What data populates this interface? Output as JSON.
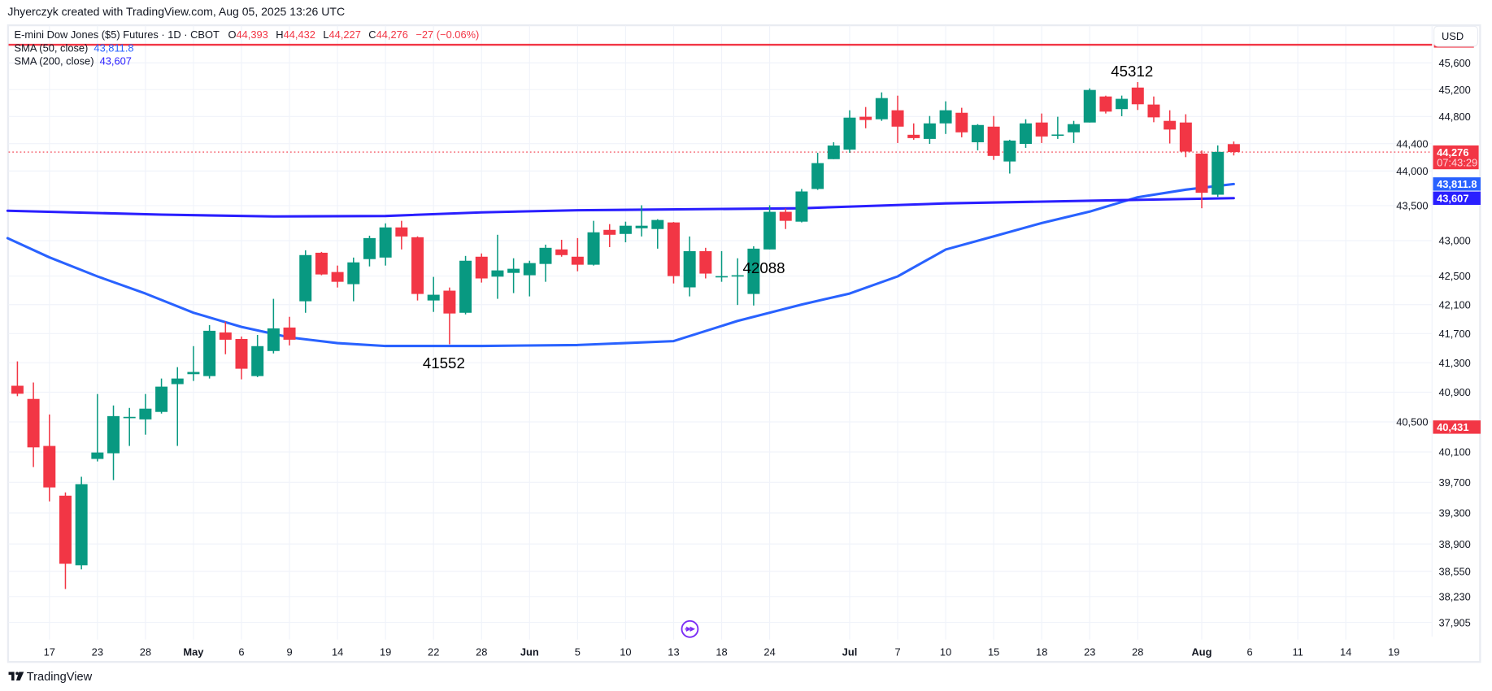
{
  "header": {
    "attribution": "Jhyerczyk created with TradingView.com, Aug 05, 2025 13:26 UTC"
  },
  "legend": {
    "symbol": "E-mini Dow Jones ($5) Futures · 1D · CBOT",
    "o_label": "O",
    "o_value": "44,393",
    "h_label": "H",
    "h_value": "44,432",
    "l_label": "L",
    "l_value": "44,227",
    "c_label": "C",
    "c_value": "44,276",
    "change": "−27 (−0.06%)",
    "sma50_label": "SMA (50, close)",
    "sma50_value": "43,811.8",
    "sma200_label": "SMA (200, close)",
    "sma200_value": "43,607"
  },
  "price_axis": {
    "currency": "USD",
    "ticks": [
      "45,600",
      "45,200",
      "44,800",
      "44,400",
      "44,000",
      "43,500",
      "43,000",
      "42,500",
      "42,100",
      "41,700",
      "41,300",
      "40,900",
      "40,500",
      "40,100",
      "39,700",
      "39,300",
      "38,900",
      "38,550",
      "38,230",
      "37,905"
    ],
    "badges": [
      {
        "text": "44,276",
        "sub": "07:43:29",
        "price": 44276,
        "color": "#f23645"
      },
      {
        "text": "43,811.8",
        "price": 43811.8,
        "color": "#2962ff"
      },
      {
        "text": "43,607",
        "price": 43607,
        "color": "#2a1fff"
      },
      {
        "text": "40,431",
        "price": 40431,
        "color": "#f23645"
      }
    ]
  },
  "time_axis": {
    "ticks": [
      {
        "label": "17",
        "date": "2025-04-17"
      },
      {
        "label": "23",
        "date": "2025-04-23"
      },
      {
        "label": "28",
        "date": "2025-04-28"
      },
      {
        "label": "May",
        "date": "2025-05-01",
        "month": true
      },
      {
        "label": "6",
        "date": "2025-05-06"
      },
      {
        "label": "9",
        "date": "2025-05-09"
      },
      {
        "label": "14",
        "date": "2025-05-14"
      },
      {
        "label": "19",
        "date": "2025-05-19"
      },
      {
        "label": "22",
        "date": "2025-05-22"
      },
      {
        "label": "28",
        "date": "2025-05-28"
      },
      {
        "label": "Jun",
        "date": "2025-06-02",
        "month": true
      },
      {
        "label": "5",
        "date": "2025-06-05"
      },
      {
        "label": "10",
        "date": "2025-06-10"
      },
      {
        "label": "13",
        "date": "2025-06-13"
      },
      {
        "label": "18",
        "date": "2025-06-18"
      },
      {
        "label": "24",
        "date": "2025-06-24"
      },
      {
        "label": "Jul",
        "date": "2025-07-01",
        "month": true
      },
      {
        "label": "7",
        "date": "2025-07-07"
      },
      {
        "label": "10",
        "date": "2025-07-10"
      },
      {
        "label": "15",
        "date": "2025-07-15"
      },
      {
        "label": "18",
        "date": "2025-07-18"
      },
      {
        "label": "23",
        "date": "2025-07-23"
      },
      {
        "label": "28",
        "date": "2025-07-28"
      },
      {
        "label": "Aug",
        "date": "2025-08-01",
        "month": true
      },
      {
        "label": "6",
        "date": "2025-08-06"
      },
      {
        "label": "11",
        "date": "2025-08-11"
      },
      {
        "label": "14",
        "date": "2025-08-14"
      },
      {
        "label": "19",
        "date": "2025-08-19"
      }
    ]
  },
  "colors": {
    "up": "#089981",
    "down": "#f23645",
    "sma50": "#2962ff",
    "sma200": "#2a1fff",
    "hline": "#f23645",
    "replay": "#7b2cf5"
  },
  "horizontal_line": {
    "price": 45874
  },
  "annotations": [
    {
      "text": "45312",
      "date": "2025-07-28",
      "position": "above"
    },
    {
      "text": "41552",
      "date": "2025-05-23",
      "position": "below"
    },
    {
      "text": "42088",
      "date": "2025-06-24",
      "position": "below"
    }
  ],
  "chart_data": {
    "type": "candlestick",
    "scale": "log",
    "columns": [
      "date",
      "open",
      "high",
      "low",
      "close"
    ],
    "candles": [
      [
        "2025-04-15",
        40987,
        41318,
        40846,
        40879
      ],
      [
        "2025-04-16",
        40809,
        41031,
        39901,
        40161
      ],
      [
        "2025-04-17",
        40180,
        40600,
        39451,
        39633
      ],
      [
        "2025-04-21",
        39525,
        39568,
        38325,
        38646
      ],
      [
        "2025-04-22",
        38627,
        39773,
        38575,
        39676
      ],
      [
        "2025-04-23",
        40008,
        40875,
        39975,
        40093
      ],
      [
        "2025-04-24",
        40083,
        40721,
        39729,
        40578
      ],
      [
        "2025-04-25",
        40555,
        40688,
        40180,
        40568
      ],
      [
        "2025-04-28",
        40534,
        40875,
        40330,
        40678
      ],
      [
        "2025-04-29",
        40634,
        41085,
        40612,
        40975
      ],
      [
        "2025-04-30",
        41009,
        41240,
        40180,
        41085
      ],
      [
        "2025-05-01",
        41144,
        41527,
        41052,
        41174
      ],
      [
        "2025-05-02",
        41118,
        41817,
        41085,
        41738
      ],
      [
        "2025-05-05",
        41715,
        41863,
        41416,
        41615
      ],
      [
        "2025-05-06",
        41625,
        41659,
        41074,
        41218
      ],
      [
        "2025-05-07",
        41118,
        41681,
        41104,
        41527
      ],
      [
        "2025-05-08",
        41460,
        42181,
        41427,
        41771
      ],
      [
        "2025-05-09",
        41783,
        41931,
        41537,
        41615
      ],
      [
        "2025-05-12",
        42147,
        42863,
        41987,
        42795
      ],
      [
        "2025-05-13",
        42828,
        42840,
        42511,
        42522
      ],
      [
        "2025-05-14",
        42556,
        42647,
        42339,
        42419
      ],
      [
        "2025-05-15",
        42386,
        42760,
        42147,
        42692
      ],
      [
        "2025-05-16",
        42738,
        43070,
        42635,
        43036
      ],
      [
        "2025-05-19",
        42760,
        43246,
        42647,
        43188
      ],
      [
        "2025-05-20",
        43188,
        43282,
        42875,
        43059
      ],
      [
        "2025-05-21",
        43048,
        43060,
        42158,
        42249
      ],
      [
        "2025-05-22",
        42158,
        42488,
        41999,
        42238
      ],
      [
        "2025-05-23",
        42295,
        42339,
        41552,
        41977
      ],
      [
        "2025-05-27",
        41987,
        42783,
        41965,
        42715
      ],
      [
        "2025-05-28",
        42772,
        42818,
        42408,
        42466
      ],
      [
        "2025-05-29",
        42491,
        43083,
        42181,
        42579
      ],
      [
        "2025-05-30",
        42544,
        42750,
        42261,
        42602
      ],
      [
        "2025-06-02",
        42511,
        42715,
        42215,
        42682
      ],
      [
        "2025-06-03",
        42670,
        42943,
        42419,
        42898
      ],
      [
        "2025-06-04",
        42875,
        43012,
        42772,
        42795
      ],
      [
        "2025-06-05",
        42772,
        43036,
        42567,
        42659
      ],
      [
        "2025-06-06",
        42659,
        43282,
        42647,
        43118
      ],
      [
        "2025-06-09",
        43153,
        43235,
        42908,
        43083
      ],
      [
        "2025-06-10",
        43095,
        43270,
        42976,
        43212
      ],
      [
        "2025-06-11",
        43176,
        43505,
        43059,
        43212
      ],
      [
        "2025-06-12",
        43165,
        43305,
        42886,
        43294
      ],
      [
        "2025-06-13",
        43259,
        43265,
        42396,
        42499
      ],
      [
        "2025-06-16",
        42341,
        43059,
        42215,
        42851
      ],
      [
        "2025-06-17",
        42851,
        42898,
        42466,
        42534
      ],
      [
        "2025-06-18",
        42495,
        42851,
        42419,
        42499
      ],
      [
        "2025-06-20",
        42504,
        42750,
        42095,
        42511
      ],
      [
        "2025-06-23",
        42249,
        42920,
        42088,
        42886
      ],
      [
        "2025-06-24",
        42875,
        43505,
        42875,
        43411
      ],
      [
        "2025-06-25",
        43411,
        43458,
        43165,
        43282
      ],
      [
        "2025-06-26",
        43270,
        43740,
        43259,
        43704
      ],
      [
        "2025-06-27",
        43740,
        44266,
        43727,
        44115
      ],
      [
        "2025-06-30",
        44173,
        44420,
        44173,
        44372
      ],
      [
        "2025-07-01",
        44313,
        44892,
        44266,
        44783
      ],
      [
        "2025-07-02",
        44796,
        44940,
        44626,
        44748
      ],
      [
        "2025-07-03",
        44759,
        45158,
        44735,
        45073
      ],
      [
        "2025-07-07",
        44892,
        45109,
        44409,
        44650
      ],
      [
        "2025-07-08",
        44530,
        44698,
        44457,
        44481
      ],
      [
        "2025-07-09",
        44469,
        44807,
        44396,
        44698
      ],
      [
        "2025-07-10",
        44698,
        45025,
        44542,
        44892
      ],
      [
        "2025-07-11",
        44855,
        44929,
        44493,
        44566
      ],
      [
        "2025-07-14",
        44420,
        44687,
        44302,
        44674
      ],
      [
        "2025-07-15",
        44650,
        44807,
        44162,
        44220
      ],
      [
        "2025-07-16",
        44139,
        44457,
        43963,
        44445
      ],
      [
        "2025-07-17",
        44396,
        44759,
        44338,
        44698
      ],
      [
        "2025-07-18",
        44711,
        44844,
        44409,
        44505
      ],
      [
        "2025-07-21",
        44525,
        44796,
        44469,
        44534
      ],
      [
        "2025-07-22",
        44566,
        44735,
        44409,
        44687
      ],
      [
        "2025-07-23",
        44711,
        45218,
        44711,
        45194
      ],
      [
        "2025-07-24",
        45097,
        45109,
        44844,
        44872
      ],
      [
        "2025-07-25",
        44909,
        45110,
        44804,
        45062
      ],
      [
        "2025-07-28",
        45230,
        45312,
        44896,
        44981
      ],
      [
        "2025-07-29",
        44977,
        45097,
        44715,
        44787
      ],
      [
        "2025-07-30",
        44735,
        44892,
        44402,
        44607
      ],
      [
        "2025-07-31",
        44711,
        44833,
        44202,
        44283
      ],
      [
        "2025-08-01",
        44255,
        44299,
        43462,
        43685
      ],
      [
        "2025-08-04",
        43657,
        44374,
        43626,
        44279
      ],
      [
        "2025-08-05",
        44393,
        44432,
        44227,
        44276
      ]
    ],
    "series": [
      {
        "name": "SMA (50, close)",
        "color": "#2962ff",
        "points": [
          [
            "2025-04-15",
            43034
          ],
          [
            "2025-04-17",
            42763
          ],
          [
            "2025-04-23",
            42495
          ],
          [
            "2025-04-28",
            42255
          ],
          [
            "2025-05-01",
            41988
          ],
          [
            "2025-05-06",
            41792
          ],
          [
            "2025-05-09",
            41647
          ],
          [
            "2025-05-14",
            41568
          ],
          [
            "2025-05-19",
            41529
          ],
          [
            "2025-05-28",
            41529
          ],
          [
            "2025-06-05",
            41542
          ],
          [
            "2025-06-13",
            41596
          ],
          [
            "2025-06-20",
            41874
          ],
          [
            "2025-06-26",
            42102
          ],
          [
            "2025-07-01",
            42255
          ],
          [
            "2025-07-07",
            42495
          ],
          [
            "2025-07-10",
            42874
          ],
          [
            "2025-07-15",
            43061
          ],
          [
            "2025-07-18",
            43251
          ],
          [
            "2025-07-23",
            43415
          ],
          [
            "2025-07-28",
            43621
          ],
          [
            "2025-07-31",
            43730
          ],
          [
            "2025-08-05",
            43811.8
          ]
        ]
      },
      {
        "name": "SMA (200, close)",
        "color": "#2a1fff",
        "points": [
          [
            "2025-04-15",
            43426
          ],
          [
            "2025-04-29",
            43371
          ],
          [
            "2025-05-08",
            43345
          ],
          [
            "2025-05-19",
            43352
          ],
          [
            "2025-05-28",
            43403
          ],
          [
            "2025-06-05",
            43433
          ],
          [
            "2025-06-26",
            43462
          ],
          [
            "2025-07-10",
            43532
          ],
          [
            "2025-07-25",
            43579
          ],
          [
            "2025-08-05",
            43607
          ]
        ]
      }
    ],
    "ylim": [
      37905,
      45600
    ],
    "last_price": 44276
  },
  "footer": {
    "logo_text": "TradingView"
  }
}
